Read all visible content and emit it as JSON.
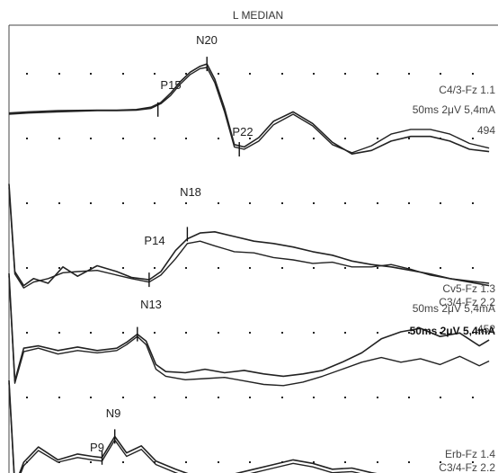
{
  "title": "L MEDIAN",
  "colors": {
    "trace": "#222222",
    "grid_dot": "#222222",
    "border": "#444444",
    "background": "#ffffff"
  },
  "chart_data": [
    {
      "type": "line",
      "channel": "C4/3-Fz 1.1",
      "settings": "50ms 2μV 5,4mA",
      "count": "494",
      "x_unit": "ms",
      "x_per_division": 5,
      "y_unit": "μV",
      "y_per_division": 2,
      "markers": [
        {
          "label": "P15",
          "x": 15.2,
          "y": 0.4
        },
        {
          "label": "N20",
          "x": 20.2,
          "y": 4.3
        },
        {
          "label": "P22",
          "x": 23.5,
          "y": -3.0
        }
      ],
      "series": [
        {
          "x": [
            0,
            2,
            5,
            9,
            11,
            13,
            14.5,
            15.5,
            16.5,
            17.5,
            18.5,
            19.5,
            20.2,
            21,
            22,
            23,
            24,
            25.5,
            27,
            29,
            31,
            33,
            35,
            37,
            39,
            41,
            43,
            45,
            47,
            49
          ],
          "y": [
            0.1,
            0.2,
            0.3,
            0.35,
            0.35,
            0.4,
            0.6,
            1.0,
            1.8,
            2.8,
            3.6,
            4.1,
            4.3,
            3.0,
            0.5,
            -2.6,
            -2.8,
            -2.0,
            -0.6,
            0.2,
            -0.8,
            -2.4,
            -3.4,
            -3.1,
            -2.3,
            -1.9,
            -1.9,
            -2.3,
            -3.0,
            -3.2
          ]
        },
        {
          "x": [
            0,
            2,
            5,
            9,
            11,
            13,
            14.5,
            15.5,
            16.5,
            17.5,
            18.5,
            19.5,
            20.2,
            21,
            22,
            23,
            24,
            25.5,
            27,
            29,
            31,
            33,
            35,
            37,
            39,
            41,
            43,
            45,
            47,
            49
          ],
          "y": [
            0.0,
            0.1,
            0.2,
            0.3,
            0.3,
            0.35,
            0.5,
            0.9,
            1.6,
            2.6,
            3.4,
            3.9,
            4.0,
            2.7,
            0.2,
            -2.8,
            -3.0,
            -2.3,
            -0.9,
            0.0,
            -1.0,
            -2.6,
            -3.3,
            -2.7,
            -1.7,
            -1.3,
            -1.3,
            -1.7,
            -2.5,
            -2.9
          ]
        }
      ]
    },
    {
      "type": "line",
      "channel": "Cv5-Fz 1.3",
      "settings": "50ms 2μV 5,4mA",
      "count": "452",
      "overlay_channel": "C3/4-Fz 2.2",
      "markers": [
        {
          "label": "P14",
          "x": 14.3,
          "y": -2.7
        },
        {
          "label": "N18",
          "x": 18.2,
          "y": 1.2
        }
      ],
      "series": [
        {
          "x": [
            0,
            0.6,
            1.5,
            2.5,
            4,
            5.5,
            7,
            9,
            11,
            12.5,
            14.3,
            15.5,
            17,
            18.2,
            19.5,
            21,
            23,
            25,
            27,
            29,
            31,
            33,
            35,
            37,
            39,
            41,
            43,
            45,
            47,
            49
          ],
          "y": [
            5.5,
            -2.0,
            -3.2,
            -2.6,
            -3.0,
            -1.6,
            -2.4,
            -1.5,
            -2.0,
            -2.5,
            -2.7,
            -2.0,
            -0.2,
            0.8,
            1.3,
            1.4,
            1.0,
            0.6,
            0.4,
            0.1,
            -0.3,
            -0.6,
            -1.1,
            -1.4,
            -1.6,
            -1.9,
            -2.2,
            -2.6,
            -2.9,
            -3.2
          ]
        },
        {
          "x": [
            0,
            0.6,
            1.5,
            2.5,
            4,
            5.5,
            7,
            9,
            11,
            12.5,
            14.3,
            15.5,
            17,
            18.2,
            19.5,
            21,
            23,
            25,
            27,
            29,
            31,
            33,
            35,
            37,
            39,
            41,
            43,
            45,
            47,
            49
          ],
          "y": [
            5.2,
            -2.2,
            -3.4,
            -2.9,
            -2.6,
            -2.1,
            -2.0,
            -1.9,
            -2.3,
            -2.6,
            -2.9,
            -2.3,
            -0.9,
            0.4,
            0.6,
            0.2,
            -0.3,
            -0.4,
            -0.8,
            -1.0,
            -1.3,
            -1.2,
            -1.6,
            -1.6,
            -1.4,
            -1.8,
            -2.3,
            -2.6,
            -2.8,
            -3.0
          ]
        }
      ]
    },
    {
      "type": "line",
      "channel": "C3/4-Fz 2.2",
      "settings": "50ms 2μV 5,4mA",
      "count": "452",
      "markers": [
        {
          "label": "N13",
          "x": 13.1,
          "y": 0.8
        }
      ],
      "series": [
        {
          "x": [
            0,
            0.6,
            1.5,
            3,
            5,
            7,
            9,
            11,
            12,
            13.1,
            14,
            15,
            16,
            18,
            20,
            22,
            24,
            26,
            28,
            30,
            32,
            34,
            36,
            38,
            40,
            42,
            44,
            46,
            48,
            49
          ],
          "y": [
            6.0,
            -3.2,
            -0.4,
            -0.2,
            -0.6,
            -0.3,
            -0.6,
            -0.4,
            0.1,
            0.8,
            0.2,
            -1.8,
            -2.4,
            -2.5,
            -2.2,
            -2.5,
            -2.3,
            -2.6,
            -2.8,
            -2.6,
            -2.3,
            -1.6,
            -0.8,
            0.4,
            1.0,
            1.3,
            0.6,
            0.9,
            -0.2,
            0.3
          ]
        },
        {
          "x": [
            0,
            0.6,
            1.5,
            3,
            5,
            7,
            9,
            11,
            12,
            13.1,
            14,
            15,
            16,
            18,
            20,
            22,
            24,
            26,
            28,
            30,
            32,
            34,
            36,
            38,
            40,
            42,
            44,
            46,
            48,
            49
          ],
          "y": [
            5.8,
            -3.4,
            -0.7,
            -0.4,
            -0.9,
            -0.6,
            -0.8,
            -0.6,
            -0.1,
            0.6,
            -0.1,
            -2.2,
            -2.8,
            -3.1,
            -3.0,
            -2.9,
            -3.2,
            -3.5,
            -3.6,
            -3.3,
            -2.8,
            -2.2,
            -1.6,
            -1.2,
            -1.6,
            -1.3,
            -1.8,
            -1.1,
            -1.9,
            -1.5
          ]
        }
      ]
    },
    {
      "type": "line",
      "channel": "Erb-Fz 1.4",
      "overlay_channel": "C3/4-Fz 2.2",
      "markers": [
        {
          "label": "P9",
          "x": 9.5,
          "y": -0.6
        },
        {
          "label": "N9",
          "x": 10.8,
          "y": 1.2
        }
      ],
      "series": [
        {
          "x": [
            0,
            0.6,
            1.5,
            3,
            5,
            7,
            8.5,
            9.5,
            10.8,
            12,
            13.5,
            15,
            17,
            19,
            21,
            23,
            25,
            27,
            29,
            31,
            33,
            35,
            37,
            39,
            41,
            43
          ],
          "y": [
            6.0,
            -3.0,
            -1.0,
            0.3,
            -0.8,
            -0.3,
            -0.5,
            -0.6,
            1.2,
            -0.2,
            0.4,
            -0.9,
            -1.6,
            -2.2,
            -2.5,
            -2.0,
            -1.6,
            -1.2,
            -0.8,
            -1.1,
            -1.6,
            -1.5,
            -1.9,
            -2.2,
            -2.0,
            -2.3
          ]
        },
        {
          "x": [
            0,
            0.6,
            1.5,
            3,
            5,
            7,
            8.5,
            9.5,
            10.8,
            12,
            13.5,
            15,
            17,
            19,
            21,
            23,
            25,
            27,
            29,
            31,
            33,
            35,
            37,
            39,
            41,
            43
          ],
          "y": [
            5.8,
            -3.2,
            -1.3,
            0.0,
            -1.0,
            -0.6,
            -0.8,
            -0.9,
            0.9,
            -0.5,
            0.1,
            -1.2,
            -1.9,
            -2.5,
            -2.8,
            -2.3,
            -1.9,
            -1.5,
            -1.1,
            -1.4,
            -1.9,
            -1.8,
            -2.2,
            -2.5,
            -2.3,
            -2.6
          ]
        }
      ]
    }
  ]
}
